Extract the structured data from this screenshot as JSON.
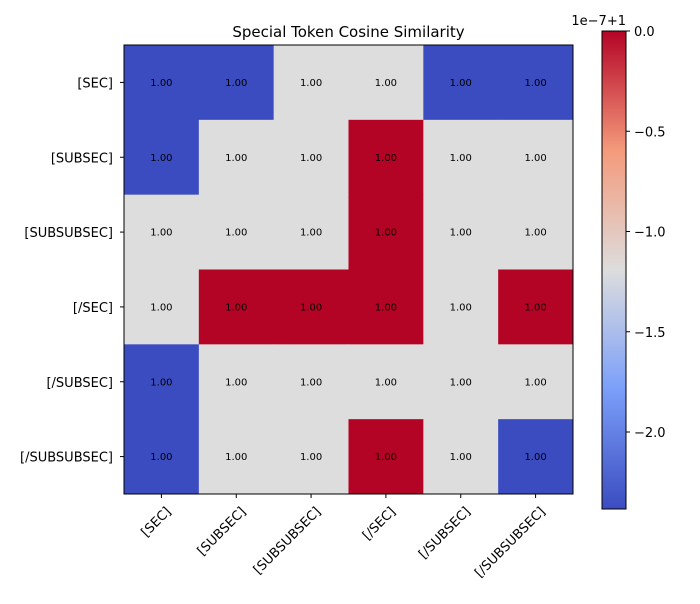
{
  "chart_data": {
    "type": "heatmap",
    "title": "Special Token Cosine Similarity",
    "row_labels": [
      "[SEC]",
      "[SUBSEC]",
      "[SUBSUBSEC]",
      "[/SEC]",
      "[/SUBSEC]",
      "[/SUBSUBSEC]"
    ],
    "col_labels": [
      "[SEC]",
      "[SUBSEC]",
      "[SUBSUBSEC]",
      "[/SEC]",
      "[/SUBSEC]",
      "[/SUBSUBSEC]"
    ],
    "values": [
      [
        -2.384,
        -2.384,
        -1.192,
        -1.192,
        -2.384,
        -2.384
      ],
      [
        -2.384,
        -1.192,
        -1.192,
        0,
        -1.192,
        -1.192
      ],
      [
        -1.192,
        -1.192,
        -1.192,
        0,
        -1.192,
        -1.192
      ],
      [
        -1.192,
        0,
        0,
        0,
        -1.192,
        0
      ],
      [
        -2.384,
        -1.192,
        -1.192,
        -1.192,
        -1.192,
        -1.192
      ],
      [
        -2.384,
        -1.192,
        -1.192,
        0,
        -1.192,
        -2.384
      ]
    ],
    "cell_labels": [
      [
        "1.00",
        "1.00",
        "1.00",
        "1.00",
        "1.00",
        "1.00"
      ],
      [
        "1.00",
        "1.00",
        "1.00",
        "1.00",
        "1.00",
        "1.00"
      ],
      [
        "1.00",
        "1.00",
        "1.00",
        "1.00",
        "1.00",
        "1.00"
      ],
      [
        "1.00",
        "1.00",
        "1.00",
        "1.00",
        "1.00",
        "1.00"
      ],
      [
        "1.00",
        "1.00",
        "1.00",
        "1.00",
        "1.00",
        "1.00"
      ],
      [
        "1.00",
        "1.00",
        "1.00",
        "1.00",
        "1.00",
        "1.00"
      ]
    ],
    "colormap": "coolwarm",
    "colors": {
      "low": "#3b4cc0",
      "mid": "#dddddd",
      "high": "#b40426"
    },
    "colorbar": {
      "offset_label": "1e−7+1",
      "vmin": -2.384,
      "vmax": 0,
      "ticks": [
        0.0,
        -0.5,
        -1.0,
        -1.5,
        -2.0
      ],
      "tick_labels": [
        "0.0",
        "−0.5",
        "−1.0",
        "−1.5",
        "−2.0"
      ]
    }
  }
}
